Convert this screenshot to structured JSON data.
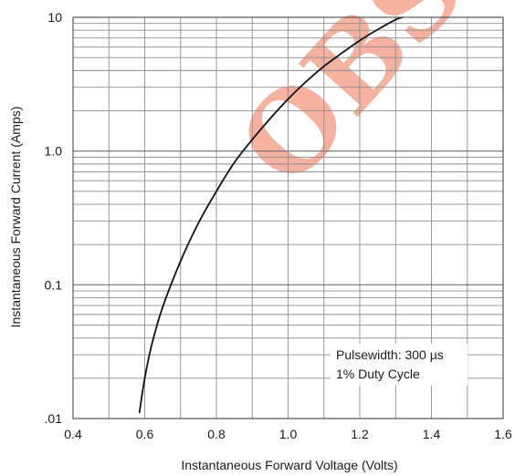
{
  "chart_data": {
    "type": "line",
    "title": "",
    "xlabel": "Instantaneous Forward Voltage (Volts)",
    "ylabel": "Instantaneous Forward Current (Amps)",
    "xlim": [
      0.4,
      1.6
    ],
    "ylim": [
      0.01,
      10
    ],
    "yscale": "log",
    "grid": true,
    "x_ticks": [
      "0.4",
      "0.6",
      "0.8",
      "1.0",
      "1.2",
      "1.4",
      "1.6"
    ],
    "y_ticks": [
      ".01",
      "0.1",
      "1.0",
      "10"
    ],
    "series": [
      {
        "x": [
          0.585,
          0.6,
          0.62,
          0.65,
          0.7,
          0.75,
          0.8,
          0.85,
          0.9,
          0.95,
          1.0,
          1.05,
          1.1,
          1.15,
          1.2,
          1.25,
          1.3,
          1.32
        ],
        "y": [
          0.011,
          0.02,
          0.036,
          0.068,
          0.15,
          0.29,
          0.5,
          0.82,
          1.22,
          1.75,
          2.45,
          3.3,
          4.3,
          5.4,
          6.7,
          8.1,
          9.6,
          10.0
        ],
        "color": "#111111"
      }
    ],
    "annotations": [
      "Pulsewidth: 300 µs",
      "1% Duty Cycle"
    ],
    "watermark": "OBS",
    "watermark_color": "#f4a58f"
  }
}
